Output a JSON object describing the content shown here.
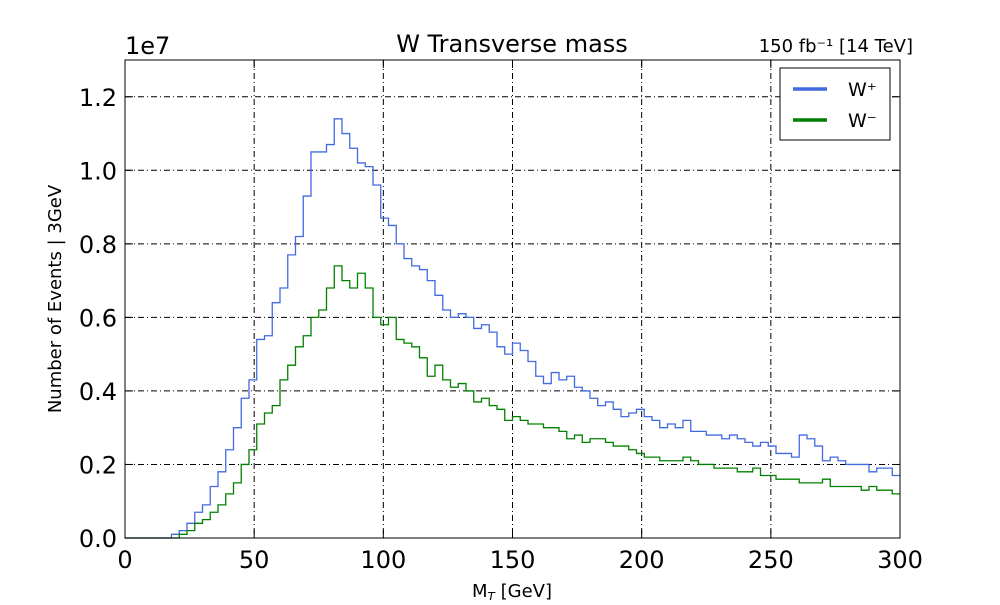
{
  "chart_data": {
    "type": "line",
    "title": "W Transverse mass",
    "subtitle": "150 fb⁻¹ [14 TeV]",
    "xlabel": "M",
    "xlabel_subscript": "T",
    "xlabel_suffix": " [GeV]",
    "ylabel": "Number of Events | 3GeV",
    "y_multiplier": "1e7",
    "xlim": [
      0,
      300
    ],
    "ylim": [
      0,
      1.3
    ],
    "xticks": [
      0,
      50,
      100,
      150,
      200,
      250,
      300
    ],
    "yticks": [
      0.0,
      0.2,
      0.4,
      0.6,
      0.8,
      1.0,
      1.2
    ],
    "xtick_labels": [
      "0",
      "50",
      "100",
      "150",
      "200",
      "250",
      "300"
    ],
    "ytick_labels": [
      "0.0",
      "0.2",
      "0.4",
      "0.6",
      "0.8",
      "1.0",
      "1.2"
    ],
    "grid": true,
    "legend_position": "top-right",
    "bin_width": 3,
    "x": [
      0,
      3,
      6,
      9,
      12,
      15,
      18,
      21,
      24,
      27,
      30,
      33,
      36,
      39,
      42,
      45,
      48,
      51,
      54,
      57,
      60,
      63,
      66,
      69,
      72,
      75,
      78,
      81,
      84,
      87,
      90,
      93,
      96,
      99,
      102,
      105,
      108,
      111,
      114,
      117,
      120,
      123,
      126,
      129,
      132,
      135,
      138,
      141,
      144,
      147,
      150,
      153,
      156,
      159,
      162,
      165,
      168,
      171,
      174,
      177,
      180,
      183,
      186,
      189,
      192,
      195,
      198,
      201,
      204,
      207,
      210,
      213,
      216,
      219,
      222,
      225,
      228,
      231,
      234,
      237,
      240,
      243,
      246,
      249,
      252,
      255,
      258,
      261,
      264,
      267,
      270,
      273,
      276,
      279,
      282,
      285,
      288,
      291,
      294,
      297
    ],
    "series": [
      {
        "name": "W⁺",
        "color": "#4169e1",
        "values": [
          0,
          0,
          0,
          0,
          0,
          0,
          0.01,
          0.02,
          0.04,
          0.07,
          0.09,
          0.14,
          0.18,
          0.24,
          0.3,
          0.38,
          0.43,
          0.54,
          0.55,
          0.64,
          0.68,
          0.77,
          0.82,
          0.93,
          1.05,
          1.05,
          1.07,
          1.14,
          1.1,
          1.06,
          1.02,
          1.01,
          0.96,
          0.87,
          0.85,
          0.8,
          0.76,
          0.74,
          0.73,
          0.7,
          0.66,
          0.62,
          0.6,
          0.61,
          0.6,
          0.57,
          0.58,
          0.56,
          0.52,
          0.5,
          0.53,
          0.51,
          0.48,
          0.44,
          0.42,
          0.45,
          0.43,
          0.44,
          0.41,
          0.4,
          0.38,
          0.36,
          0.37,
          0.35,
          0.33,
          0.34,
          0.35,
          0.33,
          0.32,
          0.3,
          0.31,
          0.3,
          0.32,
          0.29,
          0.29,
          0.28,
          0.28,
          0.27,
          0.28,
          0.27,
          0.26,
          0.25,
          0.26,
          0.25,
          0.23,
          0.23,
          0.22,
          0.28,
          0.27,
          0.25,
          0.21,
          0.22,
          0.21,
          0.2,
          0.2,
          0.2,
          0.18,
          0.19,
          0.19,
          0.17
        ]
      },
      {
        "name": "W⁻",
        "color": "#008000",
        "values": [
          0,
          0,
          0,
          0,
          0,
          0,
          0,
          0.01,
          0.02,
          0.04,
          0.05,
          0.07,
          0.09,
          0.12,
          0.15,
          0.2,
          0.24,
          0.31,
          0.34,
          0.36,
          0.43,
          0.47,
          0.52,
          0.55,
          0.6,
          0.62,
          0.68,
          0.74,
          0.7,
          0.68,
          0.72,
          0.68,
          0.6,
          0.58,
          0.6,
          0.54,
          0.53,
          0.52,
          0.49,
          0.44,
          0.47,
          0.43,
          0.41,
          0.42,
          0.4,
          0.37,
          0.38,
          0.36,
          0.35,
          0.32,
          0.33,
          0.32,
          0.31,
          0.31,
          0.3,
          0.3,
          0.29,
          0.27,
          0.28,
          0.26,
          0.27,
          0.27,
          0.26,
          0.25,
          0.25,
          0.24,
          0.23,
          0.22,
          0.22,
          0.21,
          0.21,
          0.21,
          0.22,
          0.21,
          0.2,
          0.2,
          0.19,
          0.19,
          0.19,
          0.18,
          0.18,
          0.19,
          0.17,
          0.17,
          0.16,
          0.16,
          0.16,
          0.15,
          0.15,
          0.15,
          0.16,
          0.14,
          0.14,
          0.14,
          0.14,
          0.13,
          0.14,
          0.13,
          0.13,
          0.12
        ]
      }
    ]
  }
}
